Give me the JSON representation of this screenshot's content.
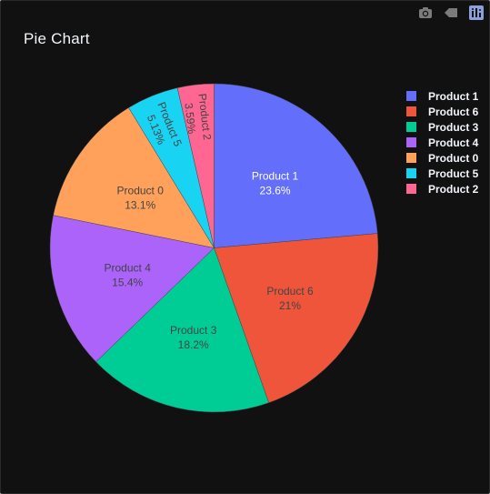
{
  "toolbar": {
    "buttons": [
      {
        "name": "camera-icon",
        "title": "Download plot as a png"
      },
      {
        "name": "autoscale-icon",
        "title": "Reset"
      },
      {
        "name": "plotly-logo-icon",
        "title": "Produced with Plotly"
      }
    ]
  },
  "chart_data": {
    "type": "pie",
    "title": "Pie Chart",
    "labels": [
      "Product 1",
      "Product 6",
      "Product 3",
      "Product 4",
      "Product 0",
      "Product 5",
      "Product 2"
    ],
    "values": [
      23.6,
      21,
      18.2,
      15.4,
      13.1,
      5.13,
      3.59
    ],
    "percent_labels": [
      "23.6%",
      "21%",
      "18.2%",
      "15.4%",
      "13.1%",
      "5.13%",
      "3.59%"
    ],
    "colors": [
      "#636efa",
      "#EF553B",
      "#00cc96",
      "#ab63fa",
      "#FFA15A",
      "#19d3f3",
      "#FF6692"
    ],
    "direction": "clockwise",
    "start_angle": "top",
    "legend_position": "right"
  },
  "theme": {
    "background": "#111111",
    "text": "#f2f5fa",
    "inside_label_light": "#ffffff",
    "inside_label_dark": "#444444"
  }
}
